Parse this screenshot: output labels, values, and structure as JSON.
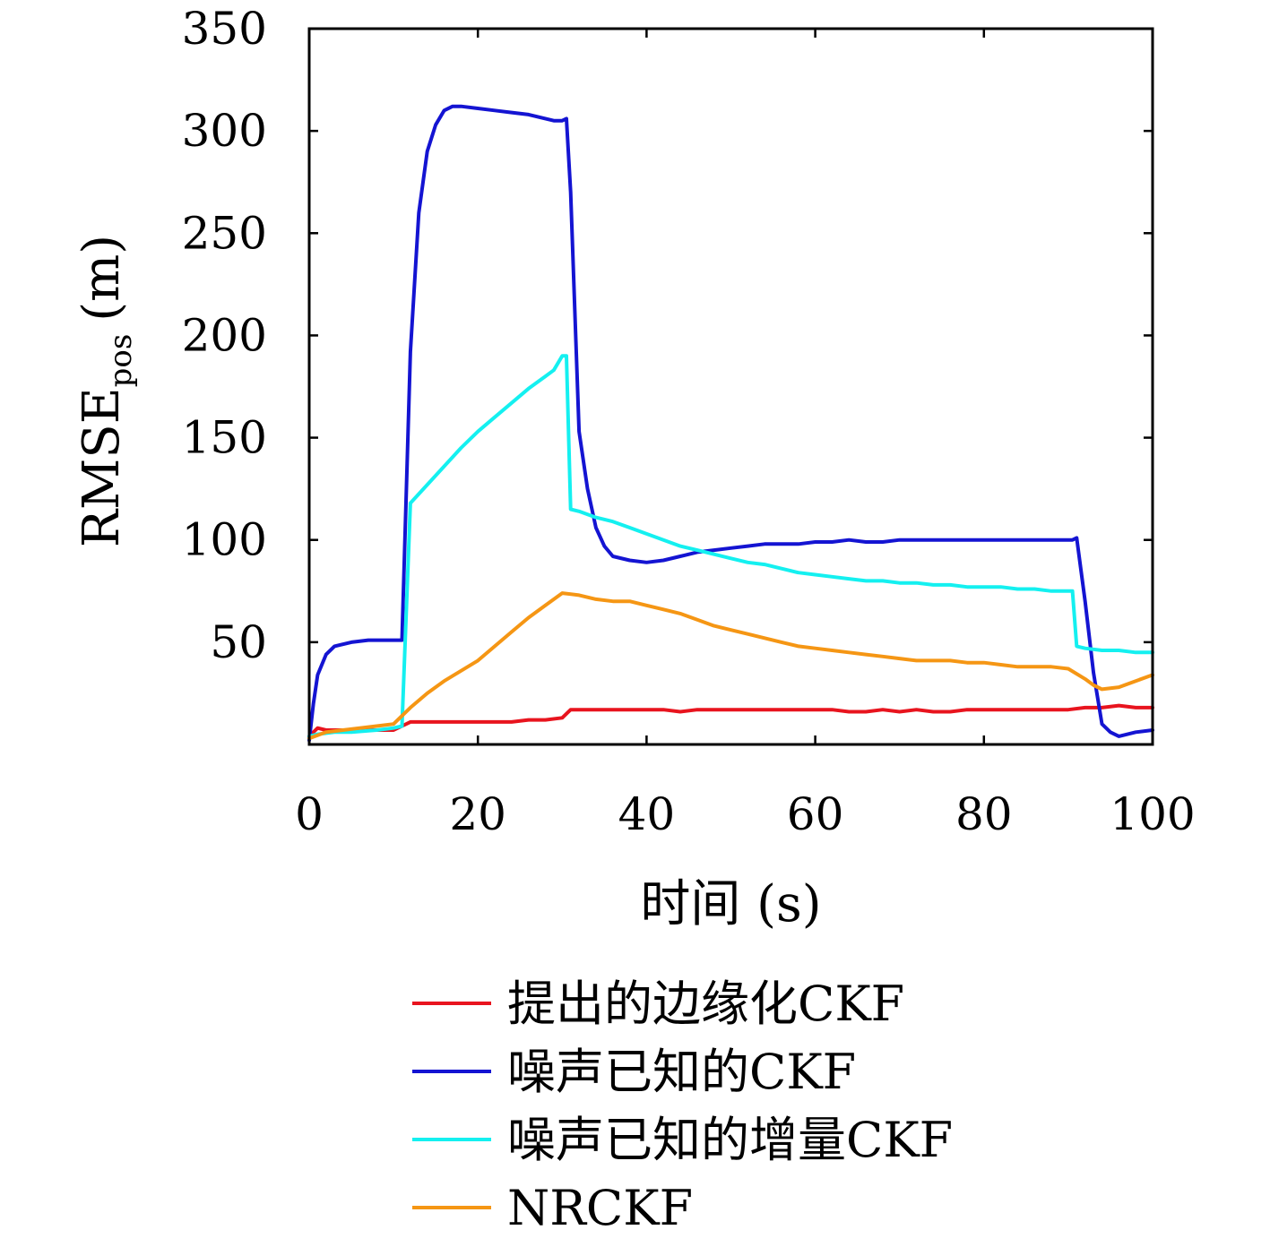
{
  "chart_data": {
    "type": "line",
    "xlabel": "时间 (s)",
    "ylabel": {
      "main": "RMSE",
      "sub": "pos",
      "unit": "(m)"
    },
    "xlim": [
      0,
      100
    ],
    "ylim": [
      0,
      350
    ],
    "xticks": [
      0,
      20,
      40,
      60,
      80,
      100
    ],
    "xtick_labels": [
      "0",
      "20",
      "40",
      "60",
      "80",
      "100"
    ],
    "yticks": [
      50,
      100,
      150,
      200,
      250,
      300,
      350
    ],
    "ytick_labels": [
      "50",
      "100",
      "150",
      "200",
      "250",
      "300",
      "350"
    ],
    "grid": false,
    "legend_position": "bottom",
    "series": [
      {
        "name": "提出的边缘化CKF",
        "color": "#e8141e",
        "x": [
          0,
          1,
          2,
          5,
          8,
          10,
          11,
          12,
          14,
          16,
          18,
          20,
          22,
          24,
          26,
          28,
          30,
          31,
          32,
          34,
          36,
          38,
          40,
          42,
          44,
          46,
          48,
          50,
          52,
          54,
          56,
          58,
          60,
          62,
          64,
          66,
          68,
          70,
          72,
          74,
          76,
          78,
          80,
          82,
          84,
          86,
          88,
          90,
          92,
          94,
          96,
          98,
          100
        ],
        "y": [
          4,
          8,
          7,
          7,
          7,
          7,
          9,
          11,
          11,
          11,
          11,
          11,
          11,
          11,
          12,
          12,
          13,
          17,
          17,
          17,
          17,
          17,
          17,
          17,
          16,
          17,
          17,
          17,
          17,
          17,
          17,
          17,
          17,
          17,
          16,
          16,
          17,
          16,
          17,
          16,
          16,
          17,
          17,
          17,
          17,
          17,
          17,
          17,
          18,
          18,
          19,
          18,
          18
        ]
      },
      {
        "name": "噪声已知的CKF",
        "color": "#1414d2",
        "x": [
          0,
          0.5,
          1,
          2,
          3,
          5,
          7,
          9,
          10,
          10.5,
          11,
          12,
          13,
          14,
          15,
          16,
          17,
          18,
          20,
          22,
          24,
          26,
          27,
          28,
          29,
          30,
          30.5,
          31,
          32,
          33,
          34,
          35,
          36,
          38,
          40,
          42,
          44,
          46,
          48,
          50,
          52,
          54,
          56,
          58,
          60,
          62,
          64,
          66,
          68,
          70,
          72,
          74,
          76,
          78,
          80,
          82,
          84,
          86,
          88,
          90,
          90.5,
          91,
          92,
          93,
          94,
          95,
          96,
          98,
          100
        ],
        "y": [
          2,
          20,
          34,
          44,
          48,
          50,
          51,
          51,
          51,
          51,
          51,
          192,
          260,
          290,
          303,
          310,
          312,
          312,
          311,
          310,
          309,
          308,
          307,
          306,
          305,
          305,
          306,
          270,
          153,
          125,
          106,
          97,
          92,
          90,
          89,
          90,
          92,
          94,
          95,
          96,
          97,
          98,
          98,
          98,
          99,
          99,
          100,
          99,
          99,
          100,
          100,
          100,
          100,
          100,
          100,
          100,
          100,
          100,
          100,
          100,
          100,
          101,
          70,
          35,
          10,
          6,
          4,
          6,
          7
        ]
      },
      {
        "name": "噪声已知的增量CKF",
        "color": "#14f0f0",
        "x": [
          0,
          1,
          3,
          5,
          8,
          10,
          11,
          12,
          14,
          16,
          18,
          20,
          22,
          24,
          26,
          28,
          29,
          30,
          30.5,
          31,
          32,
          34,
          36,
          38,
          40,
          42,
          44,
          46,
          48,
          50,
          52,
          54,
          56,
          58,
          60,
          62,
          64,
          66,
          68,
          70,
          72,
          74,
          76,
          78,
          80,
          82,
          84,
          86,
          88,
          90,
          90.5,
          91,
          92,
          94,
          96,
          98,
          100
        ],
        "y": [
          4,
          5,
          6,
          6,
          7,
          8,
          9,
          118,
          127,
          136,
          145,
          153,
          160,
          167,
          174,
          180,
          183,
          190,
          190,
          115,
          114,
          111,
          109,
          106,
          103,
          100,
          97,
          95,
          93,
          91,
          89,
          88,
          86,
          84,
          83,
          82,
          81,
          80,
          80,
          79,
          79,
          78,
          78,
          77,
          77,
          77,
          76,
          76,
          75,
          75,
          75,
          48,
          47,
          46,
          46,
          45,
          45
        ]
      },
      {
        "name": "NRCKF",
        "color": "#f59614",
        "x": [
          0,
          2,
          4,
          6,
          8,
          10,
          12,
          14,
          16,
          18,
          20,
          22,
          24,
          26,
          28,
          30,
          32,
          34,
          36,
          38,
          40,
          42,
          44,
          46,
          48,
          50,
          52,
          54,
          56,
          58,
          60,
          62,
          64,
          66,
          68,
          70,
          72,
          74,
          76,
          78,
          80,
          82,
          84,
          86,
          88,
          90,
          92,
          93,
          94,
          96,
          98,
          100
        ],
        "y": [
          3,
          6,
          7,
          8,
          9,
          10,
          18,
          25,
          31,
          36,
          41,
          48,
          55,
          62,
          68,
          74,
          73,
          71,
          70,
          70,
          68,
          66,
          64,
          61,
          58,
          56,
          54,
          52,
          50,
          48,
          47,
          46,
          45,
          44,
          43,
          42,
          41,
          41,
          41,
          40,
          40,
          39,
          38,
          38,
          38,
          37,
          32,
          29,
          27,
          28,
          31,
          34
        ]
      }
    ]
  }
}
